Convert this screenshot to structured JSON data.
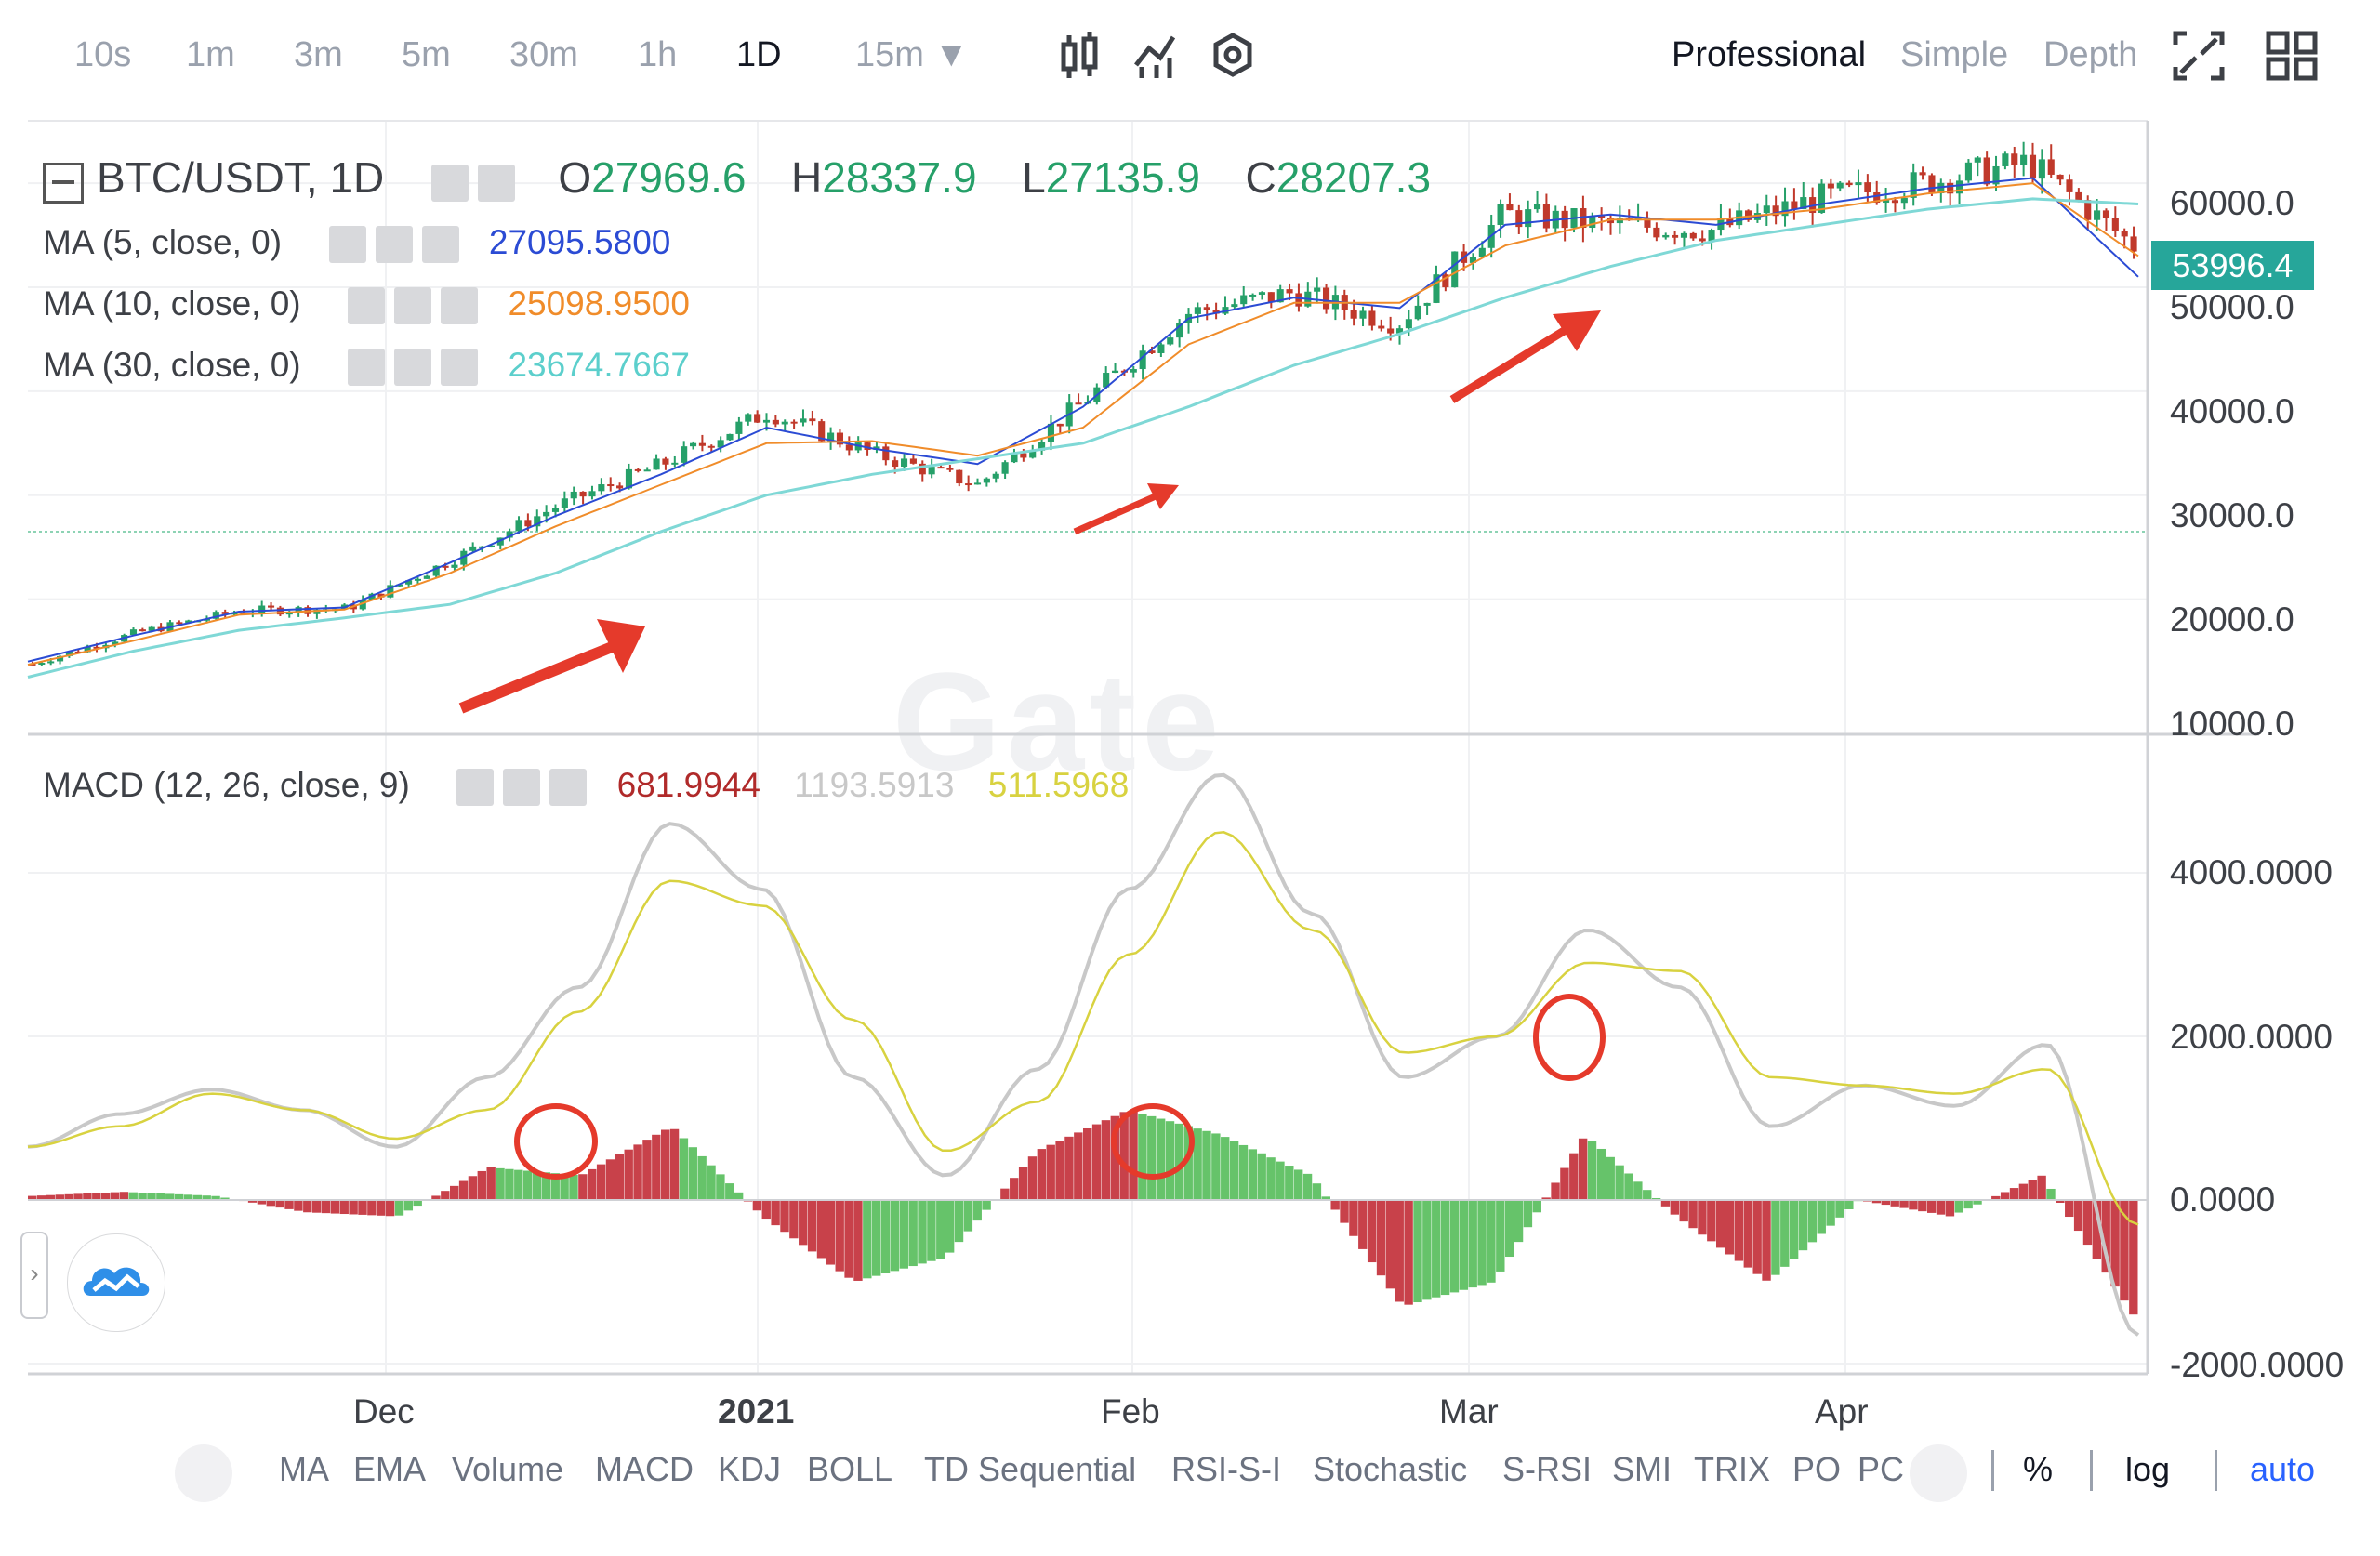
{
  "topbar": {
    "timeframes": [
      "10s",
      "1m",
      "3m",
      "5m",
      "30m",
      "1h",
      "1D",
      "15m ▼"
    ],
    "active_timeframe": "1D",
    "modes": [
      "Professional",
      "Simple",
      "Depth"
    ],
    "active_mode": "Professional",
    "tool_icons": [
      "candlestick-icon",
      "indicator-icon",
      "settings-icon",
      "fullscreen-icon",
      "grid-layout-icon"
    ]
  },
  "legend": {
    "symbol": "BTC/USDT, 1D",
    "o_label": "O",
    "o_value": "27969.6",
    "h_label": "H",
    "h_value": "28337.9",
    "l_label": "L",
    "l_value": "27135.9",
    "c_label": "C",
    "c_value": "28207.3",
    "ma5_label": "MA (5, close, 0)",
    "ma5_value": "27095.5800",
    "ma10_label": "MA (10, close, 0)",
    "ma10_value": "25098.9500",
    "ma30_label": "MA (30, close, 0)",
    "ma30_value": "23674.7667",
    "macd_label": "MACD (12, 26, close, 9)",
    "macd_hist_value": "681.9944",
    "macd_value": "1193.5913",
    "macd_signal_value": "511.5968"
  },
  "price_axis": [
    "60000.0",
    "50000.0",
    "40000.0",
    "30000.0",
    "20000.0",
    "10000.0"
  ],
  "current_price": "53996.4",
  "macd_axis": [
    "4000.0000",
    "2000.0000",
    "0.0000",
    "-2000.0000"
  ],
  "date_axis": [
    "Dec",
    "2021",
    "Feb",
    "Mar",
    "Apr"
  ],
  "watermark": "Gate",
  "bottom_toolbar": {
    "items": [
      "MA",
      "EMA",
      "Volume",
      "MACD",
      "KDJ",
      "BOLL",
      "TD Sequential",
      "RSI-S-I",
      "Stochastic",
      "S-RSI",
      "SMI",
      "TRIX",
      "PO",
      "PC"
    ],
    "percent": "%",
    "log": "log",
    "auto": "auto"
  },
  "colors": {
    "up": "#26a069",
    "down": "#c0392b",
    "ma5": "#2b4bd4",
    "ma10": "#f08c2a",
    "ma30": "#7fd8d6",
    "macd_line": "#c8c8c8",
    "signal_line": "#d8d240",
    "accent": "#2962ff",
    "arrow": "#e53a2b"
  },
  "chart_data": [
    {
      "type": "candlestick",
      "title": "BTC/USDT, 1D",
      "x_labels": [
        "Dec",
        "2021",
        "Feb",
        "Mar",
        "Apr"
      ],
      "ylim": [
        10000,
        65000
      ],
      "series": [
        {
          "name": "MA (5, close, 0)",
          "values": [
            14000,
            16500,
            18800,
            19200,
            23500,
            28000,
            32000,
            36500,
            34500,
            33000,
            38500,
            47000,
            49000,
            48000,
            56000,
            57000,
            56000,
            58000,
            59500,
            60500,
            51000
          ]
        },
        {
          "name": "MA (10, close, 0)",
          "values": [
            13700,
            16000,
            18500,
            19000,
            22500,
            27000,
            31000,
            35000,
            35200,
            33800,
            36500,
            44500,
            48500,
            48500,
            54000,
            56500,
            56500,
            57500,
            59000,
            60000,
            53000
          ]
        },
        {
          "name": "MA (30, close, 0)",
          "values": [
            12500,
            15000,
            17000,
            18200,
            19500,
            22500,
            26500,
            30000,
            32000,
            33500,
            35000,
            38500,
            42500,
            45500,
            49000,
            52000,
            54500,
            56000,
            57500,
            58500,
            58000
          ]
        }
      ],
      "closes": [
        13800,
        16800,
        18900,
        19100,
        23800,
        29000,
        33000,
        38000,
        34000,
        31000,
        39000,
        47500,
        49500,
        46500,
        57000,
        56000,
        55500,
        58500,
        60000,
        62000,
        53996.4
      ]
    },
    {
      "type": "bar",
      "title": "MACD (12, 26, close, 9)",
      "ylim": [
        -2000,
        5500
      ],
      "series": [
        {
          "name": "MACD",
          "values": [
            650,
            1050,
            1350,
            1100,
            650,
            1500,
            2600,
            4600,
            3800,
            1500,
            300,
            1600,
            3800,
            5200,
            3500,
            1500,
            2000,
            3300,
            2600,
            900,
            1400,
            1150,
            1900,
            -1650
          ]
        },
        {
          "name": "Signal",
          "values": [
            650,
            900,
            1300,
            1100,
            750,
            1100,
            2300,
            3900,
            3600,
            2200,
            600,
            1200,
            3000,
            4500,
            3300,
            1800,
            2000,
            2900,
            2800,
            1500,
            1400,
            1300,
            1600,
            -300
          ]
        },
        {
          "name": "Histogram",
          "values": [
            50,
            100,
            50,
            -150,
            -200,
            400,
            300,
            900,
            -200,
            -1000,
            -700,
            600,
            1100,
            800,
            300,
            -1300,
            -1000,
            800,
            -200,
            -1000,
            0,
            -200,
            300,
            -1400
          ]
        }
      ],
      "annotations": [
        "golden cross circles at late Dec, early Feb, mid Mar",
        "uptrend arrows on price chart"
      ]
    }
  ]
}
